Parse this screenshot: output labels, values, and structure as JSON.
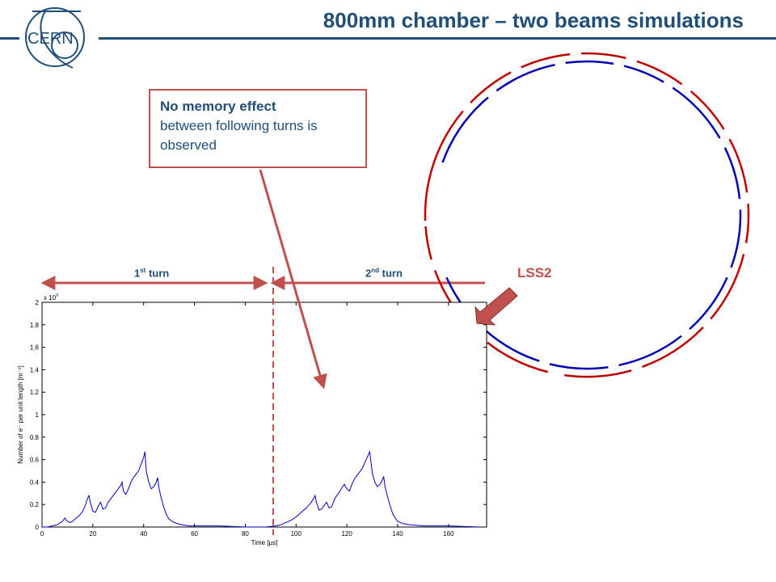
{
  "header": {
    "title": "800mm chamber – two beams simulations",
    "logo_text": "CERN",
    "colors": {
      "title": "#1f4e79",
      "accent": "#c0504d"
    }
  },
  "callout": {
    "bold": "No memory effect",
    "text": "between following turns is observed"
  },
  "turns": {
    "first": {
      "num": "1",
      "sup": "st",
      "word": " turn"
    },
    "second": {
      "num": "2",
      "sup": "nd",
      "word": " turn"
    }
  },
  "lss2_label": "LSS2",
  "ring": {
    "outer_color": "#c00000",
    "inner_color": "#0000b4"
  },
  "chart_data": {
    "type": "line",
    "ylabel": "Number of e⁻ per unit length [m⁻¹]",
    "xlabel": "Time [µs]",
    "y_multiplier": "x 10",
    "y_multiplier_exp": "9",
    "xlim": [
      0,
      175
    ],
    "ylim": [
      0,
      2
    ],
    "x_ticks": [
      0,
      20,
      40,
      60,
      80,
      100,
      120,
      140,
      160
    ],
    "x_tick_labels": [
      "0",
      "20",
      "40",
      "60",
      "80",
      "100",
      "120",
      "140",
      "160"
    ],
    "y_ticks": [
      0,
      0.2,
      0.4,
      0.6,
      0.8,
      1,
      1.2,
      1.4,
      1.6,
      1.8,
      2
    ],
    "y_tick_labels": [
      "0",
      "0.2",
      "0.4",
      "0.6",
      "0.8",
      "1",
      "1.2",
      "1.4",
      "1.6",
      "1.8",
      "2"
    ],
    "turn_divider_x": 91,
    "series": [
      {
        "color": "#0000c0",
        "points": [
          [
            0,
            0.0
          ],
          [
            2,
            0.0
          ],
          [
            4,
            0.01
          ],
          [
            6,
            0.02
          ],
          [
            8,
            0.05
          ],
          [
            9,
            0.08
          ],
          [
            10,
            0.05
          ],
          [
            11,
            0.04
          ],
          [
            12,
            0.05
          ],
          [
            13,
            0.07
          ],
          [
            14,
            0.09
          ],
          [
            15,
            0.11
          ],
          [
            16,
            0.14
          ],
          [
            17,
            0.19
          ],
          [
            18,
            0.26
          ],
          [
            18.5,
            0.28
          ],
          [
            19,
            0.22
          ],
          [
            20,
            0.14
          ],
          [
            21,
            0.13
          ],
          [
            22,
            0.18
          ],
          [
            23,
            0.22
          ],
          [
            24,
            0.16
          ],
          [
            25,
            0.17
          ],
          [
            26,
            0.22
          ],
          [
            27,
            0.25
          ],
          [
            28,
            0.28
          ],
          [
            29,
            0.31
          ],
          [
            30,
            0.34
          ],
          [
            31,
            0.37
          ],
          [
            31.5,
            0.4
          ],
          [
            32,
            0.32
          ],
          [
            33,
            0.29
          ],
          [
            34,
            0.34
          ],
          [
            35,
            0.4
          ],
          [
            36,
            0.44
          ],
          [
            37,
            0.47
          ],
          [
            38,
            0.5
          ],
          [
            39,
            0.56
          ],
          [
            40,
            0.62
          ],
          [
            40.5,
            0.67
          ],
          [
            41,
            0.5
          ],
          [
            42,
            0.4
          ],
          [
            43,
            0.34
          ],
          [
            44,
            0.36
          ],
          [
            45,
            0.4
          ],
          [
            45.5,
            0.44
          ],
          [
            46,
            0.35
          ],
          [
            47,
            0.25
          ],
          [
            48,
            0.17
          ],
          [
            49,
            0.11
          ],
          [
            50,
            0.07
          ],
          [
            52,
            0.04
          ],
          [
            55,
            0.02
          ],
          [
            58,
            0.01
          ],
          [
            62,
            0.01
          ],
          [
            70,
            0.01
          ],
          [
            80,
            0.0
          ],
          [
            88,
            0.0
          ],
          [
            92,
            0.01
          ],
          [
            94,
            0.02
          ],
          [
            96,
            0.04
          ],
          [
            98,
            0.06
          ],
          [
            100,
            0.09
          ],
          [
            102,
            0.13
          ],
          [
            104,
            0.17
          ],
          [
            106,
            0.22
          ],
          [
            107,
            0.26
          ],
          [
            107.5,
            0.28
          ],
          [
            108,
            0.22
          ],
          [
            109,
            0.15
          ],
          [
            110,
            0.16
          ],
          [
            111,
            0.19
          ],
          [
            112,
            0.22
          ],
          [
            113,
            0.17
          ],
          [
            114,
            0.18
          ],
          [
            115,
            0.24
          ],
          [
            116,
            0.28
          ],
          [
            117,
            0.31
          ],
          [
            118,
            0.35
          ],
          [
            119,
            0.38
          ],
          [
            120,
            0.34
          ],
          [
            121,
            0.32
          ],
          [
            122,
            0.38
          ],
          [
            123,
            0.43
          ],
          [
            124,
            0.46
          ],
          [
            125,
            0.49
          ],
          [
            126,
            0.52
          ],
          [
            127,
            0.57
          ],
          [
            128,
            0.62
          ],
          [
            129,
            0.67
          ],
          [
            130,
            0.48
          ],
          [
            131,
            0.4
          ],
          [
            132,
            0.36
          ],
          [
            133,
            0.38
          ],
          [
            134,
            0.42
          ],
          [
            134.5,
            0.45
          ],
          [
            135,
            0.36
          ],
          [
            136,
            0.27
          ],
          [
            137,
            0.19
          ],
          [
            138,
            0.12
          ],
          [
            139,
            0.08
          ],
          [
            140,
            0.05
          ],
          [
            142,
            0.03
          ],
          [
            145,
            0.02
          ],
          [
            150,
            0.01
          ],
          [
            160,
            0.01
          ],
          [
            172,
            0.0
          ]
        ]
      }
    ]
  }
}
